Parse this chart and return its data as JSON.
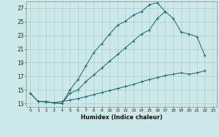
{
  "title": "",
  "xlabel": "Humidex (Indice chaleur)",
  "bg_color": "#cce8e8",
  "grid_color": "#aacccc",
  "line_color": "#1a7070",
  "xlim": [
    -0.5,
    23.5
  ],
  "ylim": [
    12.5,
    28.0
  ],
  "xticks": [
    0,
    1,
    2,
    3,
    4,
    5,
    6,
    7,
    8,
    9,
    10,
    11,
    12,
    13,
    14,
    15,
    16,
    17,
    18,
    19,
    20,
    21,
    22,
    23
  ],
  "yticks": [
    13,
    15,
    17,
    19,
    21,
    23,
    25,
    27
  ],
  "line1_x": [
    0,
    1,
    2,
    3,
    4,
    5,
    6,
    7,
    8,
    9,
    10,
    11,
    12,
    13,
    14,
    15,
    16,
    17
  ],
  "line1_y": [
    14.5,
    13.3,
    13.3,
    13.1,
    13.0,
    15.0,
    16.5,
    18.5,
    20.5,
    21.8,
    23.2,
    24.5,
    25.1,
    26.0,
    26.5,
    27.5,
    27.8,
    26.5
  ],
  "line2_x": [
    3,
    4,
    5,
    6,
    7,
    8,
    9,
    10,
    11,
    12,
    13,
    14,
    15,
    16,
    17,
    18,
    19,
    20,
    21,
    22
  ],
  "line2_y": [
    13.1,
    13.0,
    14.5,
    15.0,
    16.2,
    17.2,
    18.2,
    19.2,
    20.2,
    21.2,
    22.2,
    23.2,
    23.8,
    25.5,
    26.5,
    25.5,
    23.5,
    23.2,
    22.8,
    20.0
  ],
  "line3_x": [
    0,
    1,
    2,
    3,
    4,
    5,
    6,
    7,
    8,
    9,
    10,
    11,
    12,
    13,
    14,
    15,
    16,
    17,
    18,
    19,
    20,
    21,
    22
  ],
  "line3_y": [
    14.5,
    13.3,
    13.2,
    13.1,
    13.3,
    13.5,
    13.7,
    14.0,
    14.3,
    14.6,
    14.9,
    15.2,
    15.5,
    15.8,
    16.2,
    16.5,
    16.8,
    17.1,
    17.3,
    17.5,
    17.3,
    17.5,
    17.8
  ]
}
